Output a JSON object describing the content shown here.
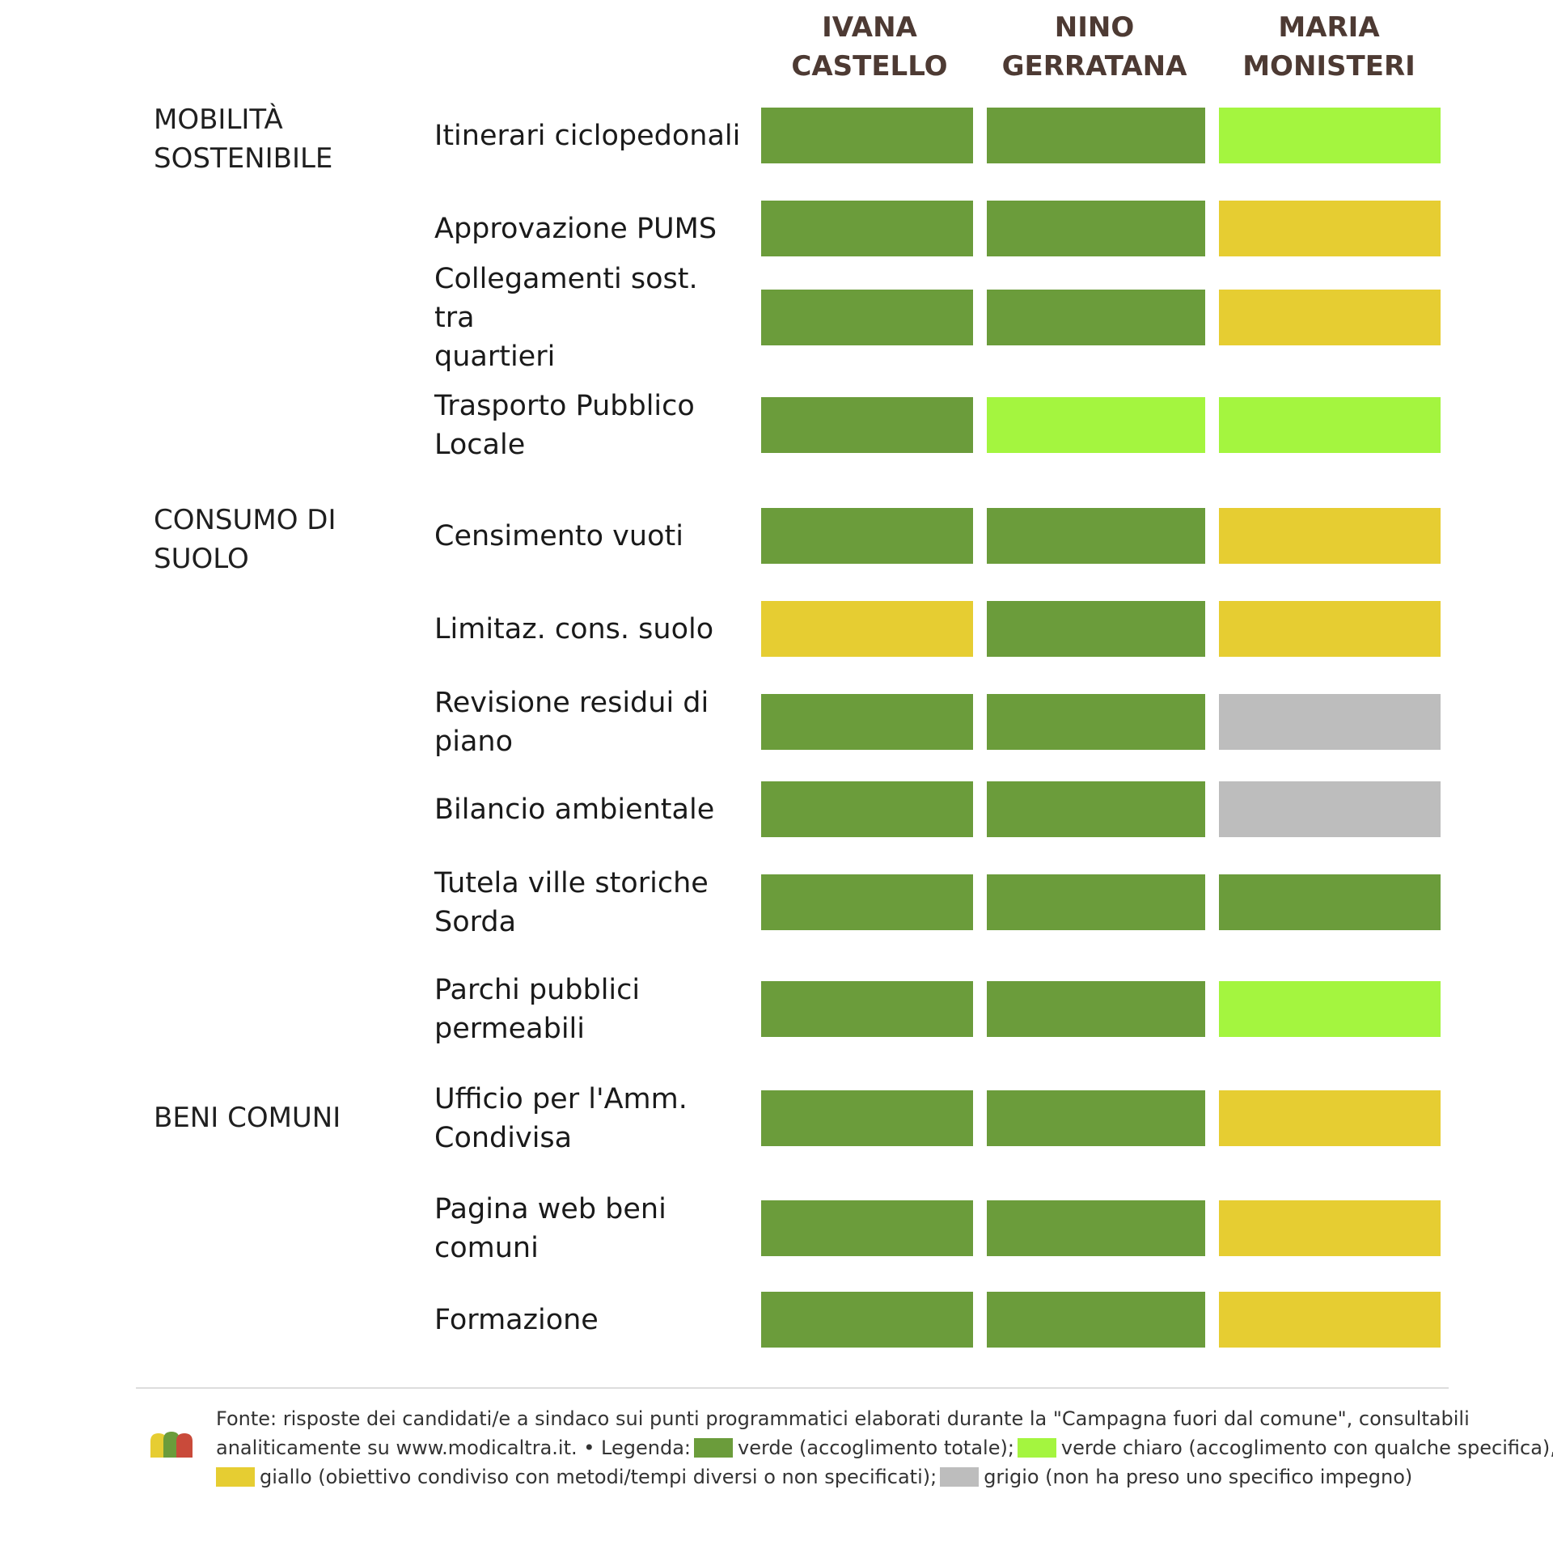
{
  "chart_data": {
    "type": "table",
    "candidates": [
      {
        "line1": "IVANA",
        "line2": "CASTELLO"
      },
      {
        "line1": "NINO",
        "line2": "GERRATANA"
      },
      {
        "line1": "MARIA",
        "line2": "MONISTERI"
      }
    ],
    "categories": [
      {
        "line1": "MOBILITÀ",
        "line2": "SOSTENIBILE"
      },
      {
        "line1": "CONSUMO DI",
        "line2": "SUOLO"
      },
      {
        "line1": "BENI COMUNI",
        "line2": ""
      }
    ],
    "rows": [
      {
        "line1": "Itinerari ciclopedonali",
        "line2": "",
        "values": [
          "verde",
          "verde",
          "verde chiaro"
        ]
      },
      {
        "line1": "Approvazione PUMS",
        "line2": "",
        "values": [
          "verde",
          "verde",
          "giallo"
        ]
      },
      {
        "line1": "Collegamenti sost. tra",
        "line2": "quartieri",
        "values": [
          "verde",
          "verde",
          "giallo"
        ]
      },
      {
        "line1": "Trasporto Pubblico",
        "line2": "Locale",
        "values": [
          "verde",
          "verde chiaro",
          "verde chiaro"
        ]
      },
      {
        "line1": "Censimento vuoti",
        "line2": "",
        "values": [
          "verde",
          "verde",
          "giallo"
        ]
      },
      {
        "line1": "Limitaz. cons. suolo",
        "line2": "",
        "values": [
          "giallo",
          "verde",
          "giallo"
        ]
      },
      {
        "line1": "Revisione residui di",
        "line2": "piano",
        "values": [
          "verde",
          "verde",
          "grigio"
        ]
      },
      {
        "line1": "Bilancio ambientale",
        "line2": "",
        "values": [
          "verde",
          "verde",
          "grigio"
        ]
      },
      {
        "line1": "Tutela ville storiche",
        "line2": "Sorda",
        "values": [
          "verde",
          "verde",
          "verde"
        ]
      },
      {
        "line1": "Parchi pubblici",
        "line2": "permeabili",
        "values": [
          "verde",
          "verde",
          "verde chiaro"
        ]
      },
      {
        "line1": "Ufficio per l'Amm.",
        "line2": "Condivisa",
        "values": [
          "verde",
          "verde",
          "giallo"
        ]
      },
      {
        "line1": "Pagina web beni",
        "line2": "comuni",
        "values": [
          "verde",
          "verde",
          "giallo"
        ]
      },
      {
        "line1": "Formazione",
        "line2": "",
        "values": [
          "verde",
          "verde",
          "giallo"
        ]
      }
    ],
    "colors": {
      "verde": "#6b9c3b",
      "verde chiaro": "#a4f53f",
      "giallo": "#e6cd32",
      "grigio": "#bdbdbd"
    }
  },
  "footer": {
    "line1": "Fonte: risposte dei candidati/e a sindaco sui punti programmatici elaborati durante la \"Campagna fuori dal comune\", consultabili",
    "line2_prefix": "analiticamente su www.modicaltra.it. • Legenda:",
    "legend_verde": "verde (accoglimento totale);",
    "legend_verde_chiaro": "verde chiaro (accoglimento con qualche specifica),",
    "legend_giallo": "giallo (obiettivo condiviso con metodi/tempi diversi o non specificati);",
    "legend_grigio": "grigio (non ha preso uno specifico impegno)"
  },
  "logo": {
    "icon": "modicaltra-logo-icon",
    "colors": [
      "#e6cd32",
      "#6b9c3b",
      "#c94a3a"
    ]
  }
}
